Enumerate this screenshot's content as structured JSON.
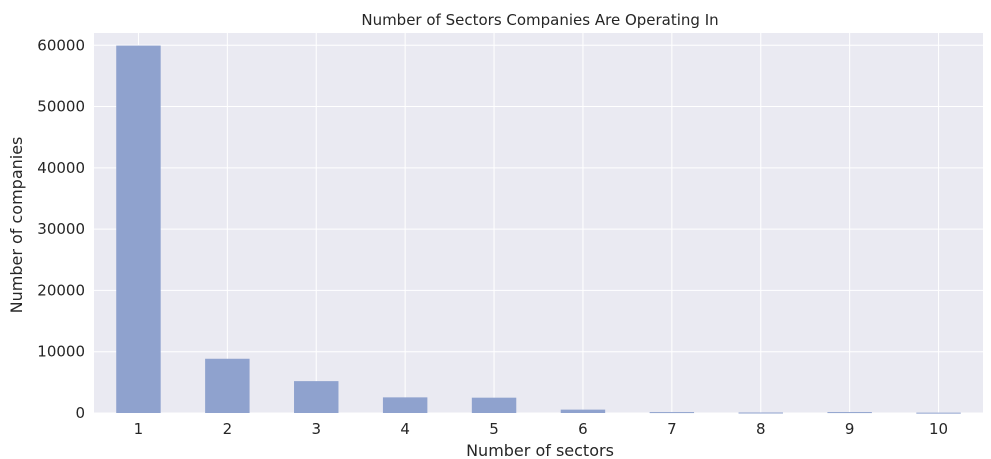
{
  "chart_data": {
    "type": "bar",
    "title": "Number of Sectors Companies Are Operating In",
    "xlabel": "Number of sectors",
    "ylabel": "Number of companies",
    "categories": [
      "1",
      "2",
      "3",
      "4",
      "5",
      "6",
      "7",
      "8",
      "9",
      "10"
    ],
    "values": [
      59950,
      8850,
      5200,
      2550,
      2500,
      550,
      150,
      80,
      150,
      60
    ],
    "ylim": [
      0,
      62000
    ],
    "yticks": [
      0,
      10000,
      20000,
      30000,
      40000,
      50000,
      60000
    ],
    "ytick_labels": [
      "0",
      "10000",
      "20000",
      "30000",
      "40000",
      "50000",
      "60000"
    ],
    "grid": true,
    "legend": "none",
    "colors": {
      "background": "#eaeaf2",
      "grid": "#ffffff",
      "bar": "#8fa2ce"
    }
  }
}
